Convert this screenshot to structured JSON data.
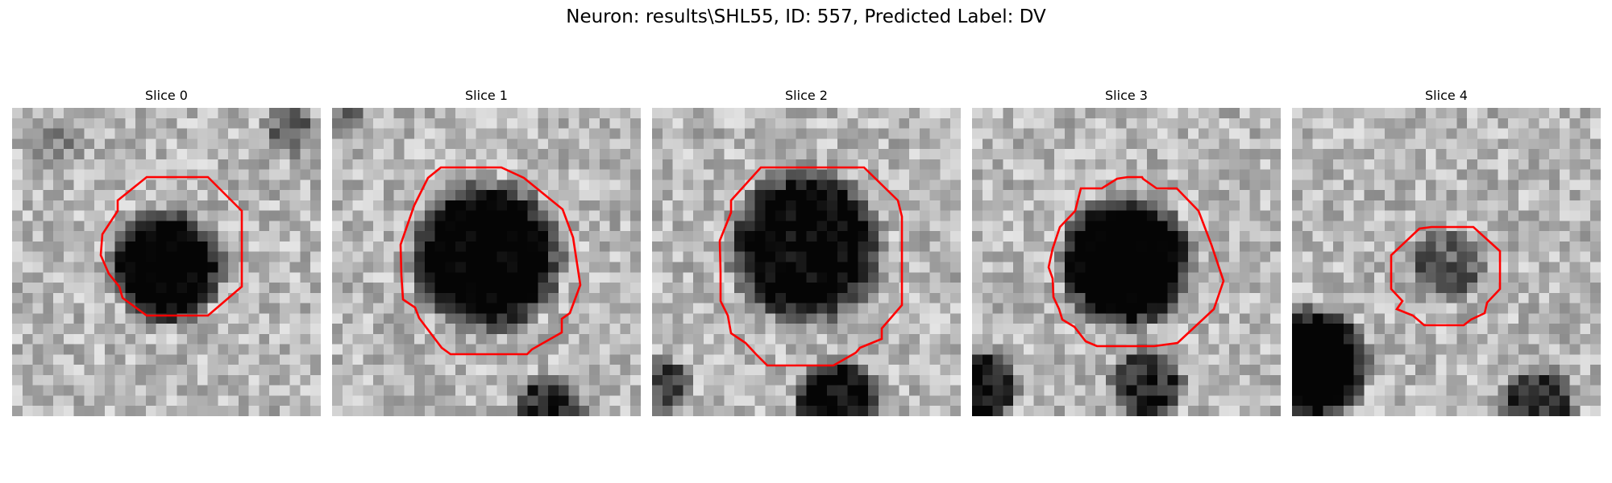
{
  "figure": {
    "title": "Neuron: results\\SHL55, ID: 557, Predicted Label: DV"
  },
  "contour_color": "#ff0000",
  "colormap": "gray",
  "panels": [
    {
      "title": "Slice 0"
    },
    {
      "title": "Slice 1"
    },
    {
      "title": "Slice 2"
    },
    {
      "title": "Slice 3"
    },
    {
      "title": "Slice 4"
    }
  ]
}
